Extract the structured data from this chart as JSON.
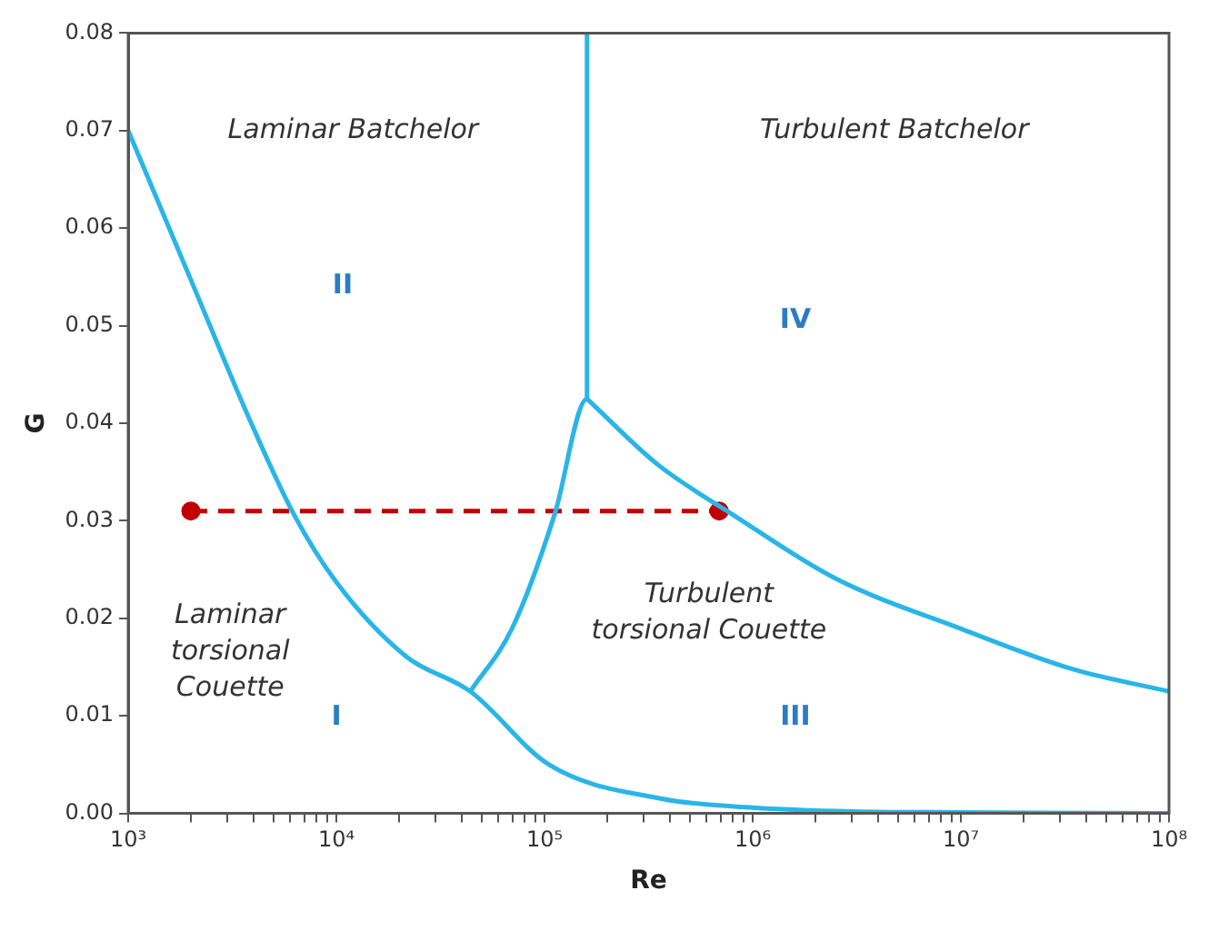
{
  "chart_data": {
    "type": "line",
    "xlabel": "Re",
    "ylabel": "G",
    "log": "x",
    "grid": false,
    "legend": false,
    "marker": "none",
    "line_style": "solid",
    "xlim": [
      1000,
      100000000
    ],
    "ylim": [
      0,
      0.08
    ],
    "xticks": [
      {
        "value": 1000,
        "label": "10³"
      },
      {
        "value": 2000,
        "label": null
      },
      {
        "value": 3000,
        "label": null
      },
      {
        "value": 4000,
        "label": null
      },
      {
        "value": 5000,
        "label": null
      },
      {
        "value": 6000,
        "label": null
      },
      {
        "value": 7000,
        "label": null
      },
      {
        "value": 8000,
        "label": null
      },
      {
        "value": 9000,
        "label": null
      },
      {
        "value": 10000,
        "label": "10⁴"
      },
      {
        "value": 20000,
        "label": null
      },
      {
        "value": 30000,
        "label": null
      },
      {
        "value": 40000,
        "label": null
      },
      {
        "value": 50000,
        "label": null
      },
      {
        "value": 60000,
        "label": null
      },
      {
        "value": 70000,
        "label": null
      },
      {
        "value": 80000,
        "label": null
      },
      {
        "value": 90000,
        "label": null
      },
      {
        "value": 100000,
        "label": "10⁵"
      },
      {
        "value": 200000,
        "label": null
      },
      {
        "value": 300000,
        "label": null
      },
      {
        "value": 400000,
        "label": null
      },
      {
        "value": 500000,
        "label": null
      },
      {
        "value": 600000,
        "label": null
      },
      {
        "value": 700000,
        "label": null
      },
      {
        "value": 800000,
        "label": null
      },
      {
        "value": 900000,
        "label": null
      },
      {
        "value": 1000000,
        "label": "10⁶"
      },
      {
        "value": 2000000,
        "label": null
      },
      {
        "value": 3000000,
        "label": null
      },
      {
        "value": 4000000,
        "label": null
      },
      {
        "value": 5000000,
        "label": null
      },
      {
        "value": 6000000,
        "label": null
      },
      {
        "value": 7000000,
        "label": null
      },
      {
        "value": 8000000,
        "label": null
      },
      {
        "value": 9000000,
        "label": null
      },
      {
        "value": 10000000,
        "label": "10⁷"
      },
      {
        "value": 20000000,
        "label": null
      },
      {
        "value": 30000000,
        "label": null
      },
      {
        "value": 40000000,
        "label": null
      },
      {
        "value": 50000000,
        "label": null
      },
      {
        "value": 60000000,
        "label": null
      },
      {
        "value": 70000000,
        "label": null
      },
      {
        "value": 80000000,
        "label": null
      },
      {
        "value": 90000000,
        "label": null
      },
      {
        "value": 100000000,
        "label": "10⁸"
      }
    ],
    "yticks": [
      {
        "value": 0,
        "label": "0.00"
      },
      {
        "value": 0.01,
        "label": "0.01"
      },
      {
        "value": 0.02,
        "label": "0.02"
      },
      {
        "value": 0.03,
        "label": "0.03"
      },
      {
        "value": 0.04,
        "label": "0.04"
      },
      {
        "value": 0.05,
        "label": "0.05"
      },
      {
        "value": 0.06,
        "label": "0.06"
      },
      {
        "value": 0.07,
        "label": "0.07"
      },
      {
        "value": 0.08,
        "label": "0.08"
      }
    ],
    "series": [
      {
        "color": "#29b5e8",
        "x": [
          1000,
          2000,
          3900,
          6200,
          10000,
          21600,
          44000,
          105000,
          366000,
          1000000,
          3000000,
          10000000,
          100000000
        ],
        "values": [
          0.07,
          0.0547,
          0.04,
          0.0308,
          0.0237,
          0.0161,
          0.0125,
          0.005,
          0.0015,
          0.0006,
          0.0002,
          0.0001,
          0
        ]
      },
      {
        "color": "#29b5e8",
        "x": [
          44000,
          70000,
          112000,
          160000,
          160000
        ],
        "values": [
          0.0125,
          0.019,
          0.0307,
          0.0425,
          0.08
        ]
      },
      {
        "color": "#29b5e8",
        "x": [
          160000,
          348000,
          820000,
          2490000,
          10100000,
          34300000,
          100000000
        ],
        "values": [
          0.0425,
          0.0358,
          0.0305,
          0.0241,
          0.0189,
          0.0148,
          0.0125
        ]
      },
      {
        "color": "#c00000",
        "x": [
          2000,
          690000
        ],
        "values": [
          0.031,
          0.031
        ],
        "line_style": "dashed",
        "marker": "circle"
      }
    ],
    "annotations": [
      "Laminar Batchelor",
      "Turbulent Batchelor",
      "II",
      "IV",
      "Laminar\ntorsional\nCouette",
      "I",
      "Turbulent\ntorsional Couette",
      "III"
    ]
  }
}
